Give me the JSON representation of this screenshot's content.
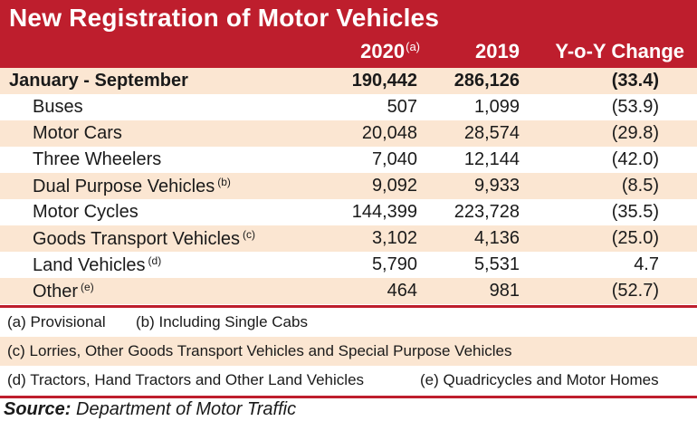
{
  "title": "New Registration of Motor Vehicles",
  "columns": {
    "c2020": "2020",
    "c2020_note": "(a)",
    "c2019": "2019",
    "yoy": "Y-o-Y Change"
  },
  "rows": [
    {
      "label": "January - September",
      "note": "",
      "v2020": "190,442",
      "v2019": "286,126",
      "yoy": "(33.4)"
    },
    {
      "label": "Buses",
      "note": "",
      "v2020": "507",
      "v2019": "1,099",
      "yoy": "(53.9)"
    },
    {
      "label": "Motor Cars",
      "note": "",
      "v2020": "20,048",
      "v2019": "28,574",
      "yoy": "(29.8)"
    },
    {
      "label": "Three Wheelers",
      "note": "",
      "v2020": "7,040",
      "v2019": "12,144",
      "yoy": "(42.0)"
    },
    {
      "label": "Dual Purpose Vehicles",
      "note": "(b)",
      "v2020": "9,092",
      "v2019": "9,933",
      "yoy": "(8.5)"
    },
    {
      "label": "Motor Cycles",
      "note": "",
      "v2020": "144,399",
      "v2019": "223,728",
      "yoy": "(35.5)"
    },
    {
      "label": "Goods Transport Vehicles",
      "note": "(c)",
      "v2020": "3,102",
      "v2019": "4,136",
      "yoy": "(25.0)"
    },
    {
      "label": "Land Vehicles",
      "note": "(d)",
      "v2020": "5,790",
      "v2019": "5,531",
      "yoy": "4.7"
    },
    {
      "label": "Other",
      "note": "(e)",
      "v2020": "464",
      "v2019": "981",
      "yoy": "(52.7)"
    }
  ],
  "notes": {
    "a": "(a) Provisional",
    "b": "(b) Including Single Cabs",
    "c": "(c) Lorries, Other Goods Transport Vehicles and Special Purpose Vehicles",
    "d": "(d) Tractors, Hand Tractors and Other Land Vehicles",
    "e": "(e) Quadricycles and Motor Homes"
  },
  "source": {
    "prefix": "Source:",
    "text": "Department of Motor Traffic"
  },
  "colors": {
    "header_bg": "#be1e2d",
    "row_shade": "#fbe6d2"
  }
}
